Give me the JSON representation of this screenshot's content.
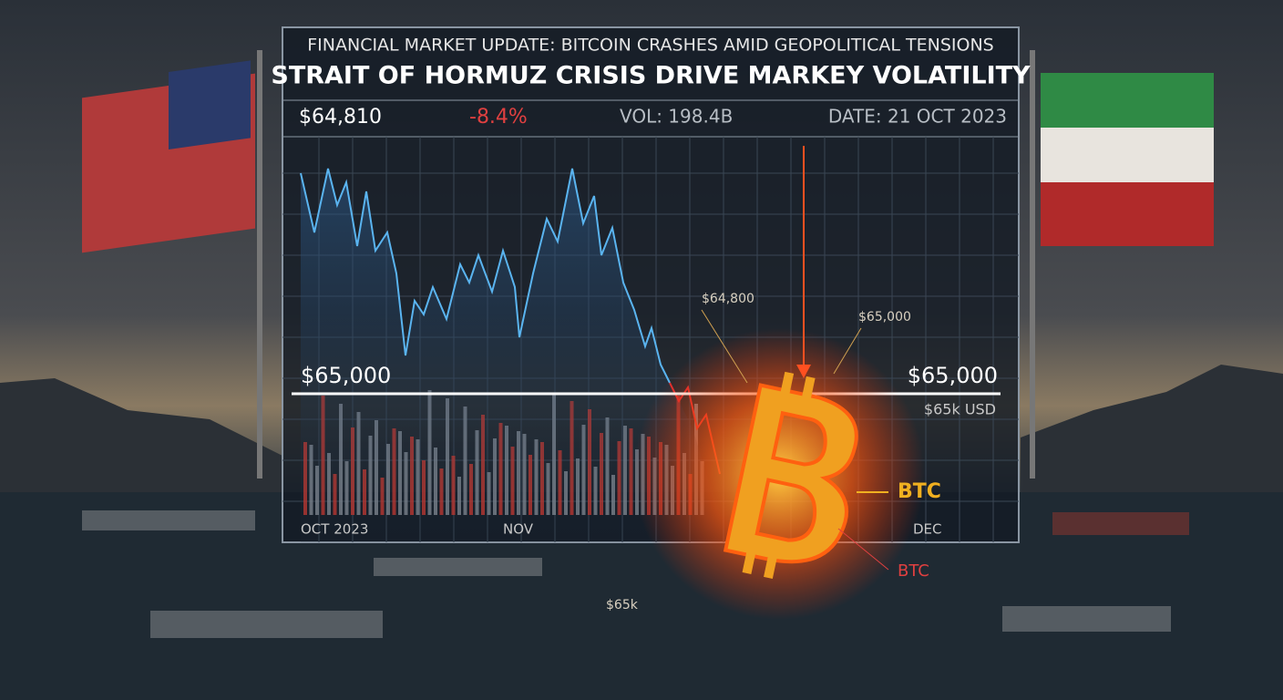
{
  "header": {
    "subtitle": "FINANCIAL MARKET UPDATE: BITCOIN CRASHES AMID GEOPOLITICAL TENSIONS",
    "title": "STRAIT OF HORMUZ CRISIS DRIVE MARKEY VOLATILITY"
  },
  "stats": {
    "price": "$64,810",
    "change": "-8.4%",
    "volume": "VOL: 198.4B",
    "date": "DATE: 21 OCT 2023"
  },
  "chart": {
    "level_left": "$65,000",
    "level_right": "$65,000",
    "level_unit": "$65k USD",
    "x_labels": [
      "OCT 2023",
      "NOV",
      "DEC"
    ]
  },
  "annotations": {
    "a1": "$64,800",
    "a2": "$65,000",
    "btc1": "BTC",
    "btc2": "BTC",
    "a3": "$65k"
  }
}
